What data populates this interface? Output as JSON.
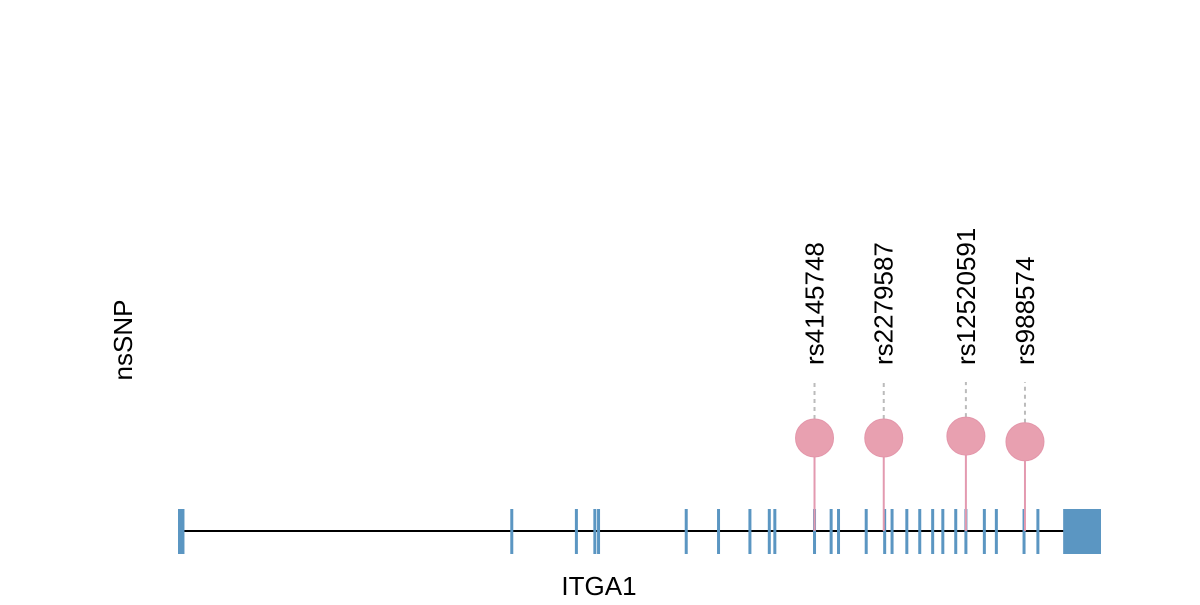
{
  "chart_data": {
    "type": "lollipop",
    "track_label": "nsSNP",
    "gene_label": "ITGA1",
    "x_range": [
      0,
      100
    ],
    "colors": {
      "exon": "#5b96c2",
      "snp": "#e8a0b0",
      "snp_stem": "#e39ab0",
      "backbone": "#000000",
      "leader": "#bbbbbb"
    },
    "exons": [
      [
        0,
        0.7
      ],
      [
        36.0,
        36.3
      ],
      [
        43.0,
        43.3
      ],
      [
        45.0,
        45.3
      ],
      [
        45.4,
        45.7
      ],
      [
        54.9,
        55.2
      ],
      [
        58.4,
        58.7
      ],
      [
        61.8,
        62.1
      ],
      [
        63.9,
        64.2
      ],
      [
        64.5,
        64.8
      ],
      [
        68.8,
        69.1
      ],
      [
        70.6,
        70.9
      ],
      [
        71.4,
        71.7
      ],
      [
        74.4,
        74.7
      ],
      [
        76.4,
        76.7
      ],
      [
        77.2,
        77.5
      ],
      [
        78.8,
        79.1
      ],
      [
        80.2,
        80.5
      ],
      [
        81.6,
        81.9
      ],
      [
        82.7,
        83.0
      ],
      [
        84.1,
        84.4
      ],
      [
        85.2,
        85.5
      ],
      [
        87.2,
        87.5
      ],
      [
        88.5,
        88.8
      ],
      [
        91.5,
        91.8
      ],
      [
        93.0,
        93.3
      ],
      [
        95.9,
        100
      ]
    ],
    "snps": [
      {
        "id": "rs4145748",
        "pos": 68.8,
        "height": 1.0
      },
      {
        "id": "rs2279587",
        "pos": 76.3,
        "height": 1.0
      },
      {
        "id": "rs12520591",
        "pos": 85.2,
        "height": 1.02
      },
      {
        "id": "rs988574",
        "pos": 91.6,
        "height": 0.96
      }
    ]
  }
}
